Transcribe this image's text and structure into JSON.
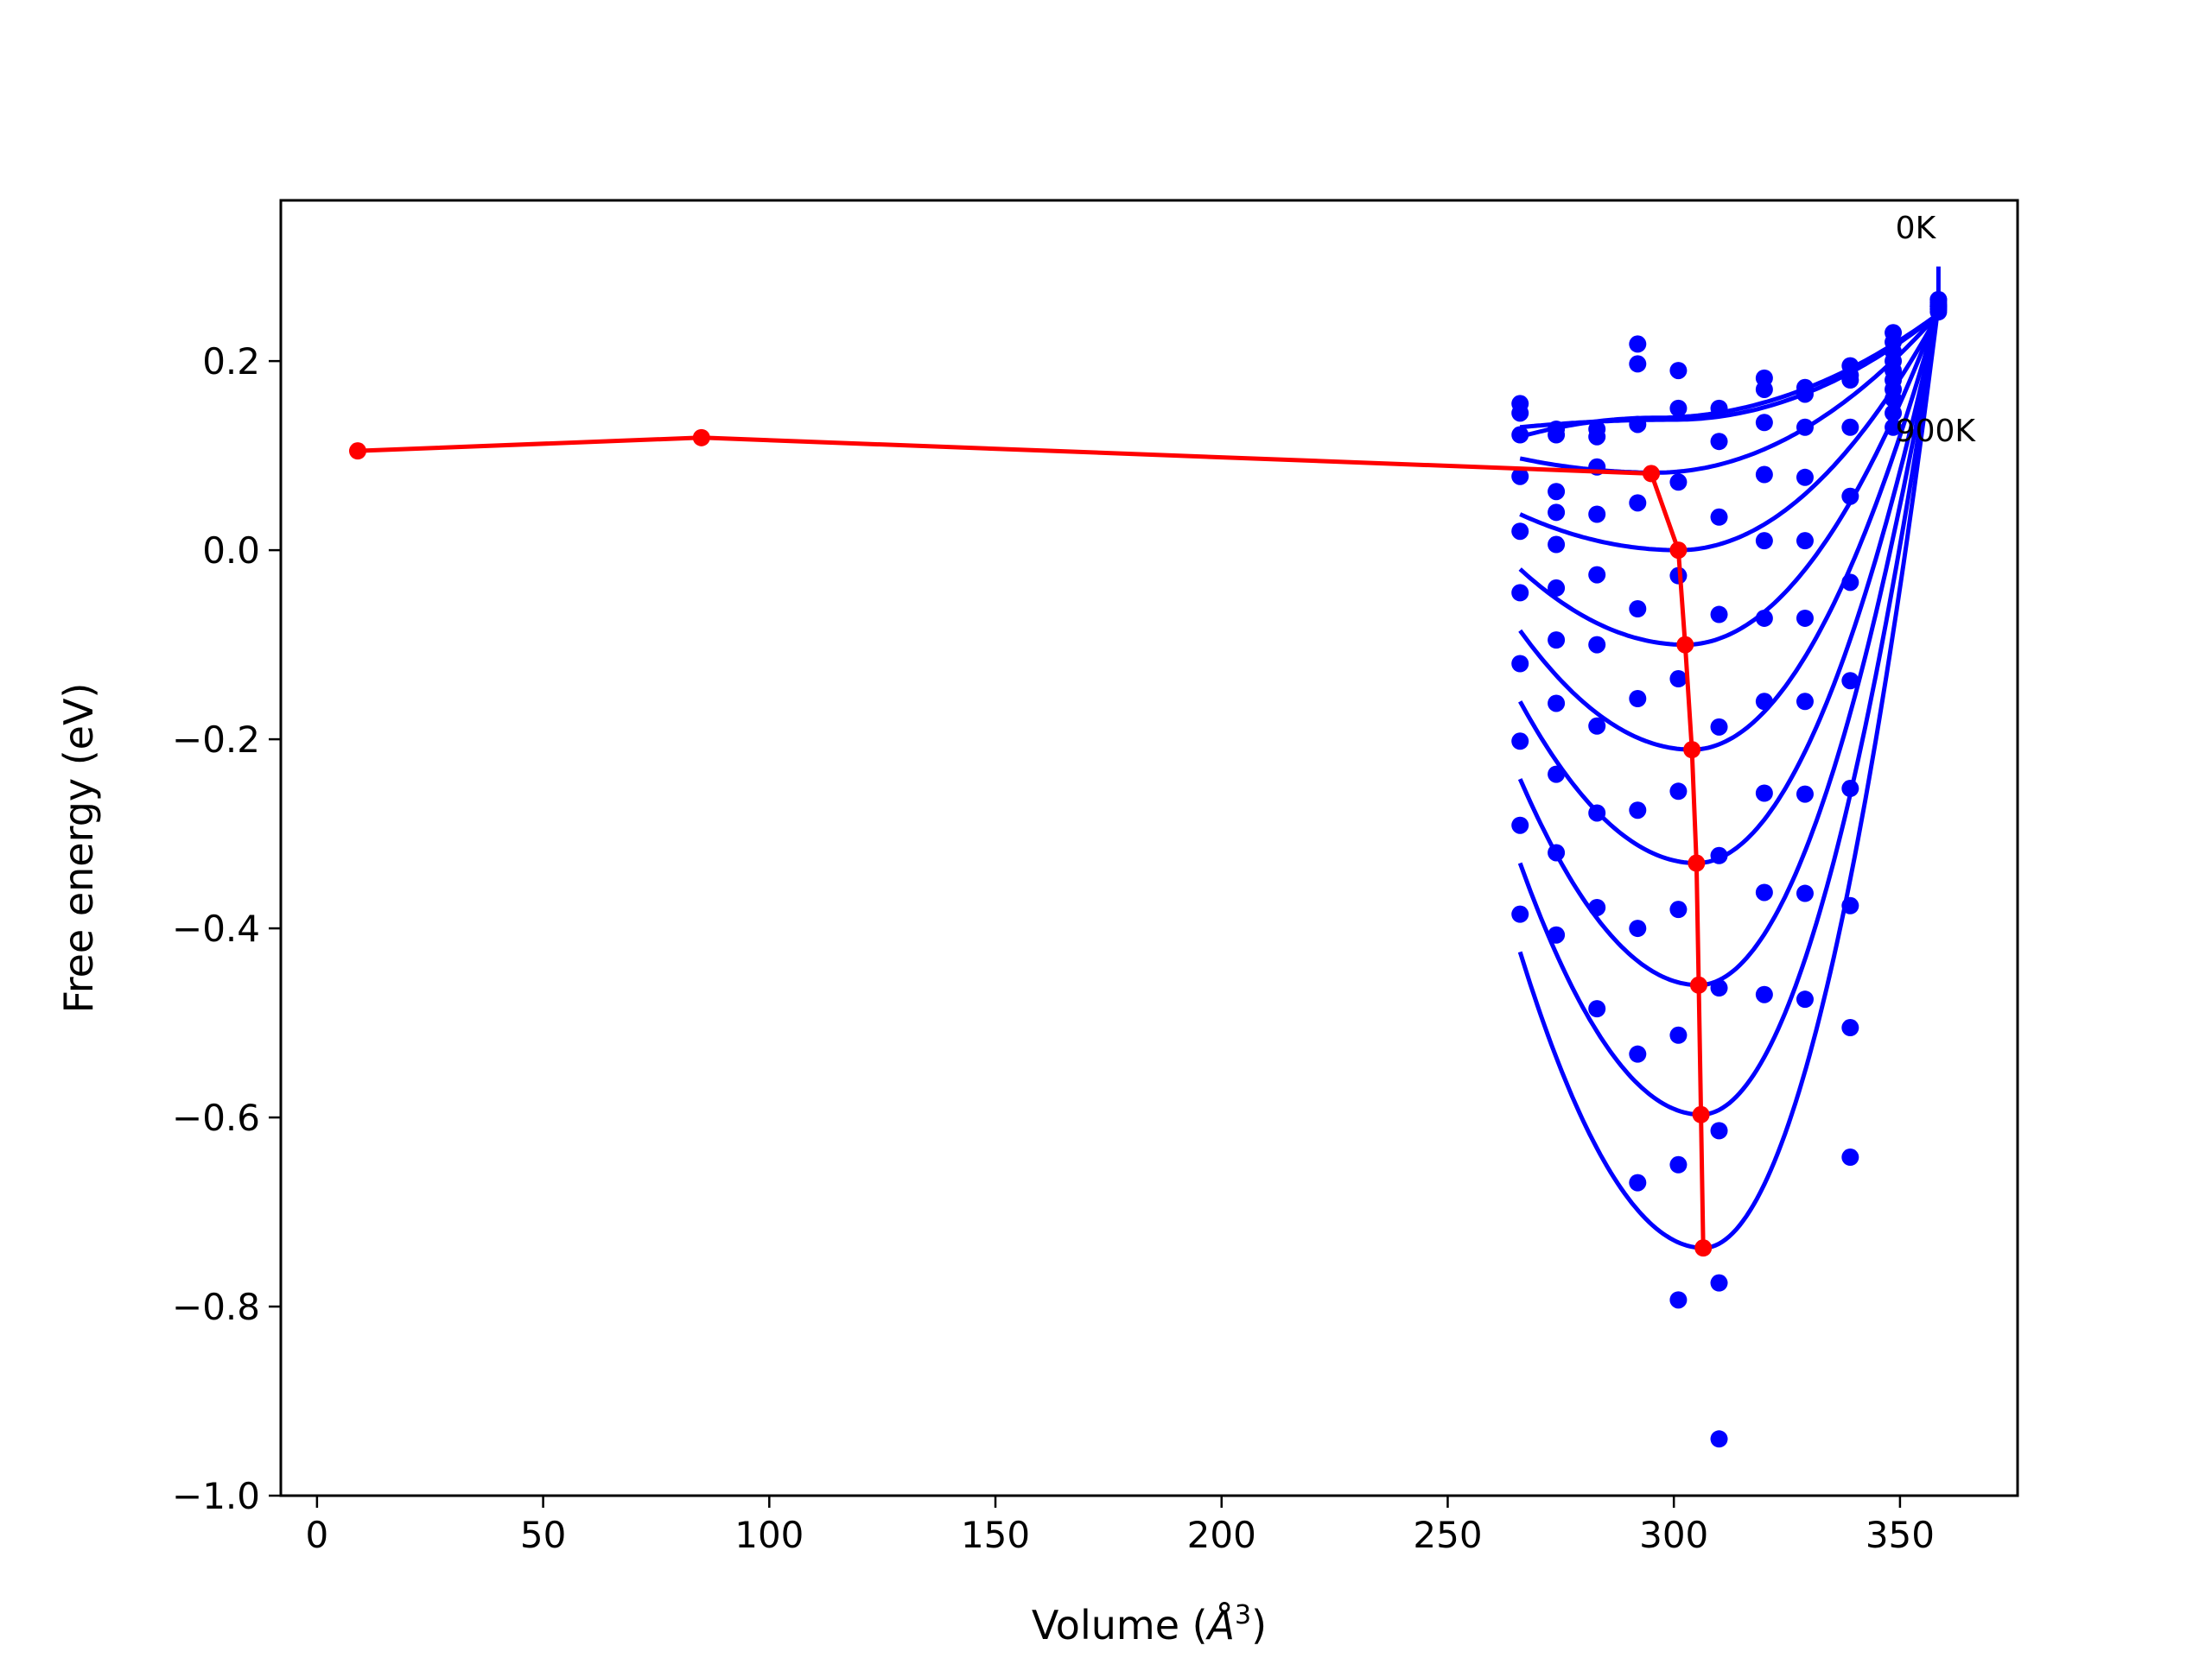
{
  "chart_data": {
    "type": "line",
    "xlabel": "Volume ($\\AA^3$)",
    "xlabel_parts": {
      "main": "Volume (",
      "symbol": "Å",
      "sup": "3",
      "close": ")"
    },
    "ylabel": "Free energy (eV)",
    "xlim": [
      -8,
      376
    ],
    "ylim": [
      -1.0,
      0.37
    ],
    "xticks": [
      0,
      50,
      100,
      150,
      200,
      250,
      300,
      350
    ],
    "xtick_labels": [
      "0",
      "50",
      "100",
      "150",
      "200",
      "250",
      "300",
      "350"
    ],
    "yticks": [
      -1.0,
      -0.8,
      -0.6,
      -0.4,
      -0.2,
      0.0,
      0.2
    ],
    "ytick_labels": [
      "−1.0",
      "−0.8",
      "−0.6",
      "−0.4",
      "−0.2",
      "0.0",
      "0.2"
    ],
    "grid": false,
    "colors": {
      "curves": "#0000ff",
      "minimum": "#ff0000",
      "axes": "#000000"
    },
    "annotations": [
      {
        "text": "0K",
        "x": 349,
        "y": 0.33
      },
      {
        "text": "900K",
        "x": 349,
        "y": 0.115
      }
    ],
    "volumes": [
      266,
      274,
      283,
      292,
      301,
      310,
      320,
      329,
      339,
      348.5,
      358.5
    ],
    "curve_x_range": [
      266,
      358.5
    ],
    "curves": [
      {
        "name": "c1",
        "minV": 300,
        "minF": 0.138,
        "end": 0.25,
        "pts": [
          0.155,
          0.128,
          0.128,
          0.218,
          0.19,
          0.15,
          0.182,
          0.172,
          0.195,
          0.23,
          0.265
        ]
      },
      {
        "name": "c2",
        "minV": 296,
        "minF": 0.14,
        "end": 0.25,
        "pts": [
          0.145,
          0.122,
          0.12,
          0.197,
          0.15,
          0.115,
          0.17,
          0.165,
          0.185,
          0.22,
          0.258
        ]
      },
      {
        "name": "c3",
        "minV": 296,
        "minF": 0.082,
        "end": 0.25,
        "pts": [
          0.122,
          0.062,
          0.088,
          0.133,
          0.072,
          0.035,
          0.135,
          0.13,
          0.18,
          0.21,
          0.255
        ]
      },
      {
        "name": "c4",
        "minV": 301,
        "minF": 0.0,
        "end": 0.25,
        "pts": [
          0.078,
          0.04,
          0.038,
          0.05,
          -0.027,
          -0.068,
          0.08,
          0.077,
          0.13,
          0.2,
          0.252
        ]
      },
      {
        "name": "c5",
        "minV": 302.5,
        "minF": -0.1,
        "end": 0.255,
        "pts": [
          0.02,
          0.006,
          -0.026,
          -0.062,
          -0.136,
          -0.187,
          0.01,
          0.01,
          0.057,
          0.19,
          0.258
        ]
      },
      {
        "name": "c6",
        "minV": 304,
        "minF": -0.211,
        "end": 0.255,
        "pts": [
          -0.045,
          -0.04,
          -0.1,
          -0.157,
          -0.255,
          -0.323,
          -0.072,
          -0.072,
          -0.034,
          0.18,
          0.255
        ]
      },
      {
        "name": "c7",
        "minV": 305,
        "minF": -0.331,
        "end": 0.255,
        "pts": [
          -0.12,
          -0.095,
          -0.186,
          -0.275,
          -0.38,
          -0.463,
          -0.16,
          -0.16,
          -0.138,
          0.17,
          0.26
        ]
      },
      {
        "name": "c8",
        "minV": 305.5,
        "minF": -0.46,
        "end": 0.26,
        "pts": [
          -0.202,
          -0.162,
          -0.278,
          -0.4,
          -0.513,
          -0.614,
          -0.257,
          -0.258,
          -0.252,
          0.16,
          0.258
        ]
      },
      {
        "name": "c9",
        "minV": 306,
        "minF": -0.597,
        "end": 0.26,
        "pts": [
          -0.291,
          -0.237,
          -0.378,
          -0.533,
          -0.65,
          -0.775,
          -0.362,
          -0.363,
          -0.376,
          0.145,
          0.262
        ]
      },
      {
        "name": "c10",
        "minV": 306.5,
        "minF": -0.738,
        "end": 0.26,
        "pts": [
          -0.385,
          -0.32,
          -0.485,
          -0.669,
          -0.793,
          -0.94,
          -0.47,
          -0.475,
          -0.505,
          0.13,
          0.265
        ]
      },
      {
        "name": "c11",
        "minV": 306.5,
        "minF": -0.738,
        "end": 0.26,
        "pts": [
          null,
          -0.407,
          null,
          null,
          null,
          null,
          null,
          null,
          -0.642,
          null,
          null
        ]
      }
    ],
    "minimum_series": {
      "x": [
        9,
        85,
        295,
        301,
        302.5,
        304,
        305,
        305.5,
        306,
        306.5
      ],
      "y": [
        0.105,
        0.119,
        0.081,
        0.0,
        -0.1,
        -0.211,
        -0.331,
        -0.46,
        -0.597,
        -0.738
      ]
    }
  }
}
